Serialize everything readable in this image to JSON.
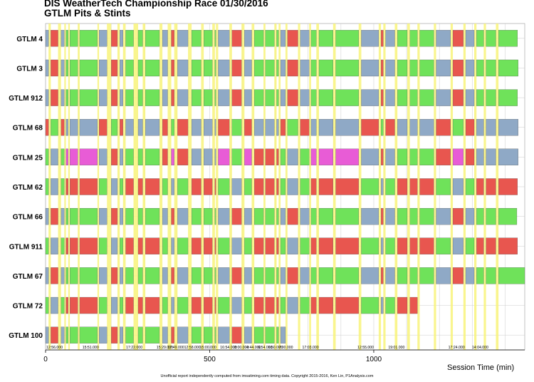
{
  "title": "DIS WeatherTech Championship Race 01/30/2016",
  "subtitle": "GTLM Pits & Stints",
  "footer": "Unofficial report independently computed from imsatiming.com timing data. Copyright 2015-2016, Ken Lin, P1Analysis.com",
  "colors": {
    "red": "#e8564f",
    "blue": "#8fa9c6",
    "green": "#6fe25a",
    "magenta": "#e85cd6",
    "pit": "#f8f37a",
    "grid": "#cccccc",
    "neutral": "#e6e6e6"
  },
  "chart_data": {
    "type": "gantt",
    "title": "GTLM Pits & Stints",
    "xlabel": "Session Time (min)",
    "xlim": [
      0,
      1460
    ],
    "xticks": [
      0,
      500,
      1000
    ],
    "grid": true,
    "rows": [
      "GTLM 4",
      "GTLM 3",
      "GTLM 912",
      "GTLM 68",
      "GTLM 25",
      "GTLM 62",
      "GTLM 66",
      "GTLM 911",
      "GTLM 67",
      "GTLM 72",
      "GTLM 100"
    ],
    "pit_windows": [
      [
        9,
        16
      ],
      [
        38,
        47
      ],
      [
        57,
        62
      ],
      [
        69,
        74
      ],
      [
        98,
        104
      ],
      [
        158,
        163
      ],
      [
        187,
        200
      ],
      [
        219,
        226
      ],
      [
        236,
        244
      ],
      [
        268,
        282
      ],
      [
        296,
        304
      ],
      [
        347,
        356
      ],
      [
        372,
        383
      ],
      [
        392,
        402
      ],
      [
        434,
        445
      ],
      [
        474,
        482
      ],
      [
        508,
        516
      ],
      [
        519,
        526
      ],
      [
        560,
        568
      ],
      [
        597,
        606
      ],
      [
        628,
        636
      ],
      [
        664,
        670
      ],
      [
        697,
        704
      ],
      [
        710,
        716
      ],
      [
        731,
        737
      ],
      [
        769,
        776
      ],
      [
        803,
        809
      ],
      [
        825,
        833
      ],
      [
        876,
        884
      ],
      [
        954,
        962
      ],
      [
        1015,
        1022
      ],
      [
        1029,
        1036
      ],
      [
        1064,
        1072
      ],
      [
        1102,
        1110
      ],
      [
        1133,
        1140
      ],
      [
        1183,
        1190
      ],
      [
        1234,
        1241
      ],
      [
        1273,
        1280
      ],
      [
        1306,
        1313
      ],
      [
        1335,
        1342
      ],
      [
        1372,
        1380
      ]
    ],
    "caution_labels": [
      {
        "x": 0,
        "text": "12:56.000"
      },
      {
        "x": 110,
        "text": "15:51.000"
      },
      {
        "x": 243,
        "text": "17:22.000"
      },
      {
        "x": 336,
        "text": "15:29.000"
      },
      {
        "x": 370,
        "text": "17:49.000"
      },
      {
        "x": 420,
        "text": "12:58.000"
      },
      {
        "x": 468,
        "text": "15:00.000"
      },
      {
        "x": 530,
        "text": "16:54.000"
      },
      {
        "x": 573,
        "text": "8:00.000"
      },
      {
        "x": 610,
        "text": "4:44.000"
      },
      {
        "x": 645,
        "text": "6:54.000"
      },
      {
        "x": 676,
        "text": "6:50.000"
      },
      {
        "x": 708,
        "text": "7:00.000"
      },
      {
        "x": 780,
        "text": "17:03.000"
      },
      {
        "x": 948,
        "text": "12:55.000"
      },
      {
        "x": 1042,
        "text": "19:01.000"
      },
      {
        "x": 1225,
        "text": "17:24.000"
      },
      {
        "x": 1297,
        "text": "14:04.000"
      }
    ],
    "cars": [
      {
        "name": "GTLM 4",
        "end": 1438,
        "start_color": 0
      },
      {
        "name": "GTLM 3",
        "end": 1440,
        "start_color": 0
      },
      {
        "name": "GTLM 912",
        "end": 1438,
        "start_color": 0
      },
      {
        "name": "GTLM 68",
        "end": 1440,
        "start_color": 2
      },
      {
        "name": "GTLM 25",
        "end": 1440,
        "start_color": 1
      },
      {
        "name": "GTLM 62",
        "end": 1438,
        "start_color": 1
      },
      {
        "name": "GTLM 66",
        "end": 1436,
        "start_color": 0
      },
      {
        "name": "GTLM 911",
        "end": 1438,
        "start_color": 1
      },
      {
        "name": "GTLM 67",
        "end": 1460,
        "start_color": 0
      },
      {
        "name": "GTLM 72",
        "end": 1135,
        "start_color": 1
      },
      {
        "name": "GTLM 100",
        "end": 735,
        "start_color": 0
      }
    ],
    "series": [
      {
        "name": "GTLM 4",
        "stints": [
          [
            0,
            6
          ],
          [
            6,
            9
          ],
          [
            16,
            38
          ],
          [
            47,
            57
          ],
          [
            62,
            69
          ],
          [
            74,
            98
          ],
          [
            104,
            158
          ],
          [
            163,
            187
          ],
          [
            200,
            219
          ],
          [
            226,
            236
          ],
          [
            244,
            268
          ],
          [
            282,
            296
          ],
          [
            304,
            347
          ],
          [
            356,
            372
          ],
          [
            383,
            392
          ],
          [
            402,
            434
          ],
          [
            445,
            474
          ],
          [
            482,
            508
          ],
          [
            516,
            519
          ],
          [
            526,
            560
          ],
          [
            568,
            597
          ],
          [
            606,
            628
          ],
          [
            636,
            664
          ],
          [
            670,
            697
          ],
          [
            704,
            710
          ],
          [
            716,
            731
          ],
          [
            737,
            769
          ],
          [
            776,
            803
          ],
          [
            809,
            825
          ],
          [
            833,
            876
          ],
          [
            884,
            954
          ],
          [
            962,
            1015
          ],
          [
            1022,
            1029
          ],
          [
            1036,
            1064
          ],
          [
            1072,
            1102
          ],
          [
            1110,
            1133
          ],
          [
            1140,
            1183
          ],
          [
            1190,
            1234
          ],
          [
            1241,
            1273
          ],
          [
            1280,
            1306
          ],
          [
            1313,
            1335
          ],
          [
            1342,
            1372
          ],
          [
            1380,
            1438
          ]
        ]
      }
    ]
  }
}
